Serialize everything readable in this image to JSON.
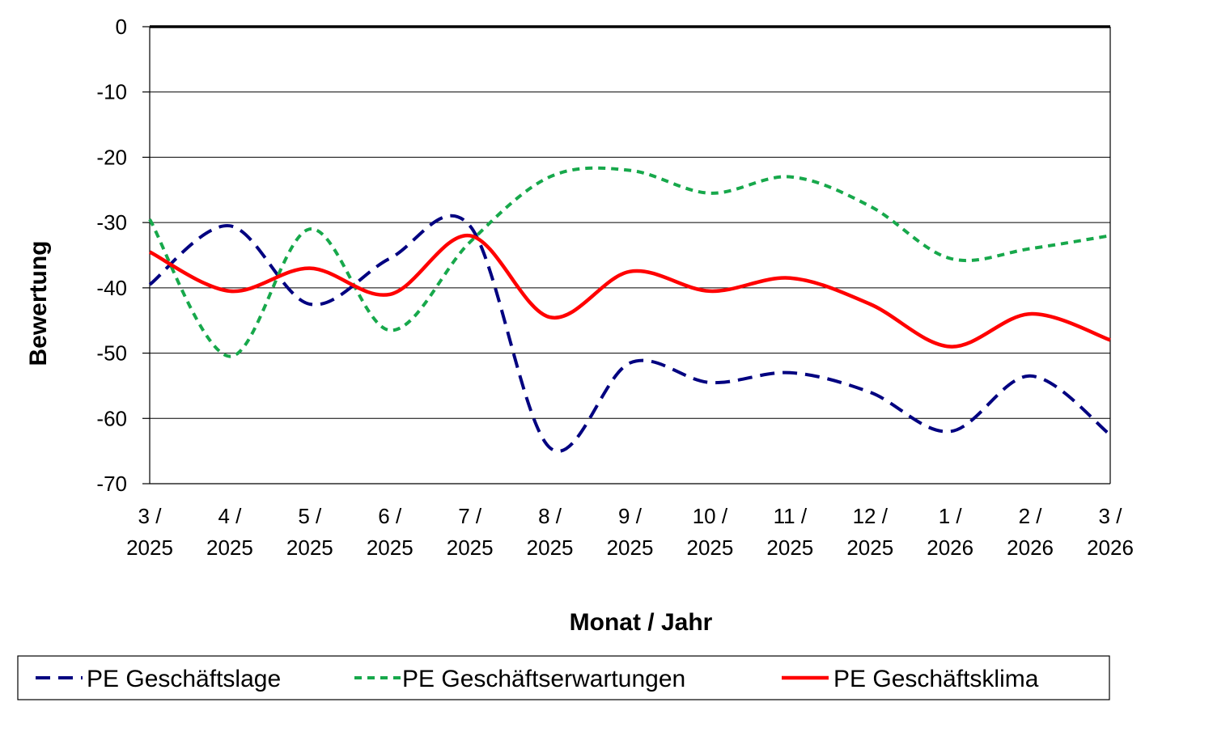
{
  "chart_data": {
    "type": "line",
    "title": "",
    "xlabel": "Monat / Jahr",
    "ylabel": "Bewertung",
    "ylim": [
      -70,
      0
    ],
    "yticks": [
      0,
      -10,
      -20,
      -30,
      -40,
      -50,
      -60,
      -70
    ],
    "grid": true,
    "legend_position": "bottom",
    "categories": [
      [
        "3 /",
        "2025"
      ],
      [
        "4 /",
        "2025"
      ],
      [
        "5 /",
        "2025"
      ],
      [
        "6 /",
        "2025"
      ],
      [
        "7 /",
        "2025"
      ],
      [
        "8 /",
        "2025"
      ],
      [
        "9 /",
        "2025"
      ],
      [
        "10 /",
        "2025"
      ],
      [
        "11 /",
        "2025"
      ],
      [
        "12 /",
        "2025"
      ],
      [
        "1 /",
        "2026"
      ],
      [
        "2 /",
        "2026"
      ],
      [
        "3 /",
        "2026"
      ]
    ],
    "series": [
      {
        "name": "PE Geschäftslage",
        "color": "#000080",
        "style": "dashed",
        "values": [
          -39.5,
          -30.5,
          -42.5,
          -35.5,
          -30.5,
          -64.5,
          -51.5,
          -54.5,
          -53,
          -56,
          -62,
          -53.5,
          -62.5
        ]
      },
      {
        "name": "PE Geschäftserwartungen",
        "color": "#17a84b",
        "style": "dotted",
        "values": [
          -29.5,
          -50.5,
          -31,
          -46.5,
          -33,
          -23,
          -22,
          -25.5,
          -23,
          -27.5,
          -35.5,
          -34,
          -32
        ]
      },
      {
        "name": "PE Geschäftsklima",
        "color": "#ff0000",
        "style": "solid",
        "values": [
          -34.5,
          -40.5,
          -37,
          -41,
          -32,
          -44.5,
          -37.5,
          -40.5,
          -38.5,
          -42.5,
          -49,
          -44,
          -48
        ]
      }
    ]
  }
}
